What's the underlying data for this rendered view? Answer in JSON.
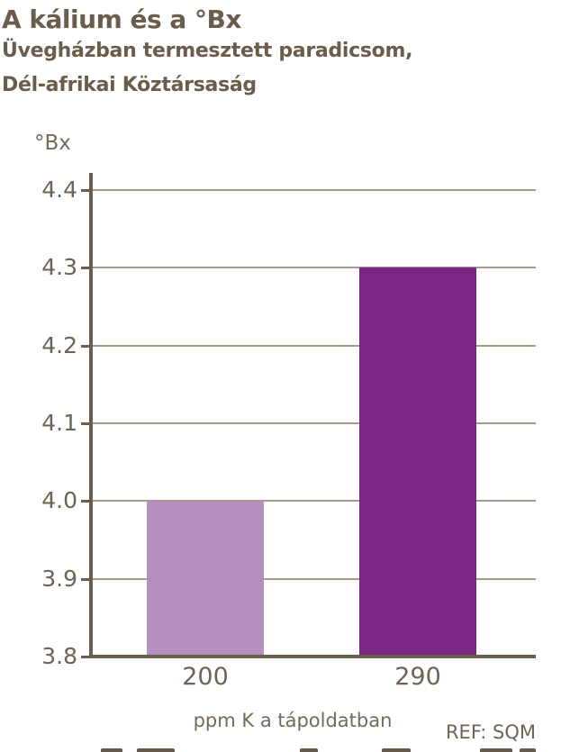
{
  "header": {
    "title": "A kálium és a °Bx",
    "subtitle_line1": "Üvegházban termesztett paradicsom,",
    "subtitle_line2": "Dél-afrikai Köztársaság"
  },
  "chart_data": {
    "type": "bar",
    "title": "A kálium és a °Bx",
    "subtitle": "Üvegházban termesztett paradicsom, Dél-afrikai Köztársaság",
    "categories": [
      "200",
      "290"
    ],
    "values": [
      4.0,
      4.3
    ],
    "bar_colors": [
      "#b48fbe",
      "#7c2585"
    ],
    "ylabel": "°Bx",
    "xlabel": "ppm K a tápoldatban",
    "ylim": [
      3.8,
      4.4
    ],
    "yticks": [
      "4.4",
      "4.3",
      "4.2",
      "4.1",
      "4.0",
      "3.9",
      "3.8"
    ],
    "grid": true,
    "legend": "none"
  },
  "footer": {
    "reference": "REF: SQM"
  },
  "colors": {
    "background": "#ffffff",
    "text_dark": "#6b5d4b",
    "text_mid": "#75695a",
    "text_tick": "#6f6355",
    "axis": "#6b5e50",
    "gridline": "#a79a8b",
    "bar_light": "#b48fbe",
    "bar_dark": "#7c2585"
  }
}
